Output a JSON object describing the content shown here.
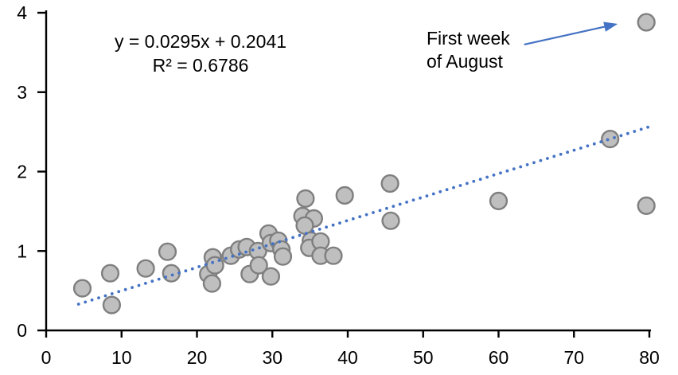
{
  "chart_data": {
    "type": "scatter",
    "title": "",
    "xlabel": "",
    "ylabel": "",
    "xlim": [
      0,
      80
    ],
    "ylim": [
      0,
      4
    ],
    "xticks": [
      0,
      10,
      20,
      30,
      40,
      50,
      60,
      70,
      80
    ],
    "yticks": [
      0,
      1,
      2,
      3,
      4
    ],
    "grid": false,
    "legend": false,
    "points": [
      [
        4.8,
        0.53
      ],
      [
        8.5,
        0.72
      ],
      [
        8.7,
        0.32
      ],
      [
        13.2,
        0.78
      ],
      [
        16.1,
        0.99
      ],
      [
        16.6,
        0.72
      ],
      [
        21.5,
        0.71
      ],
      [
        22.0,
        0.59
      ],
      [
        22.1,
        0.92
      ],
      [
        22.4,
        0.82
      ],
      [
        24.5,
        0.94
      ],
      [
        25.6,
        1.02
      ],
      [
        26.6,
        1.05
      ],
      [
        27.0,
        0.71
      ],
      [
        28.1,
        1.0
      ],
      [
        28.2,
        0.82
      ],
      [
        29.5,
        1.22
      ],
      [
        29.8,
        1.1
      ],
      [
        29.8,
        0.68
      ],
      [
        30.8,
        1.13
      ],
      [
        31.2,
        1.02
      ],
      [
        31.4,
        0.93
      ],
      [
        34.4,
        1.66
      ],
      [
        34.0,
        1.44
      ],
      [
        35.5,
        1.41
      ],
      [
        34.3,
        1.32
      ],
      [
        35.1,
        1.13
      ],
      [
        34.9,
        1.04
      ],
      [
        36.4,
        1.12
      ],
      [
        36.4,
        0.94
      ],
      [
        38.1,
        0.94
      ],
      [
        39.6,
        1.7
      ],
      [
        45.6,
        1.85
      ],
      [
        45.7,
        1.38
      ],
      [
        60.0,
        1.63
      ],
      [
        74.8,
        2.41
      ],
      [
        79.6,
        3.88
      ],
      [
        79.6,
        1.57
      ]
    ],
    "trendline": {
      "type": "linear",
      "slope": 0.0295,
      "intercept": 0.2041,
      "r_squared": 0.6786,
      "style": "dotted",
      "x_start": 4.3,
      "x_end": 79.8,
      "label_line1": "y = 0.0295x + 0.2041",
      "label_line2": "R² = 0.6786"
    },
    "annotation": {
      "text": "First week of August",
      "lines": [
        "First week",
        "of August"
      ],
      "arrow_from": [
        63.4,
        3.6
      ],
      "arrow_to": [
        75.8,
        3.86
      ],
      "target_point": [
        79.6,
        3.88
      ]
    },
    "colors": {
      "marker_fill": "#bfbfbf",
      "marker_stroke": "#7f7f7f",
      "trend": "#4472c4",
      "arrow": "#4472c4",
      "axis": "#000000",
      "text": "#000000"
    }
  }
}
